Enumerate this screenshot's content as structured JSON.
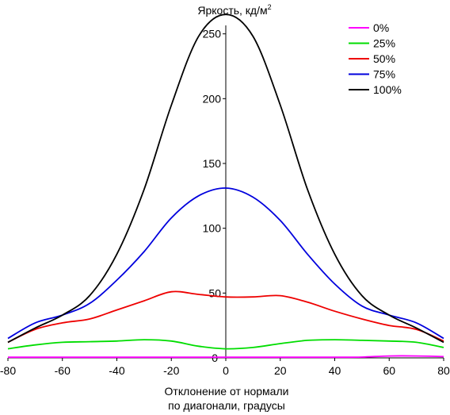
{
  "chart_data": {
    "type": "line",
    "title": "Яркость, кд/м",
    "title_superscript": "2",
    "xlabel_line1": "Отклонение от нормали",
    "xlabel_line2": "по диагонали, градусы",
    "ylabel": "",
    "xlim": [
      -80,
      80
    ],
    "ylim": [
      0,
      270
    ],
    "x_ticks": [
      -80,
      -60,
      -40,
      -20,
      0,
      20,
      40,
      60,
      80
    ],
    "y_ticks": [
      50,
      100,
      150,
      200,
      250
    ],
    "grid": false,
    "legend_position": "top-right",
    "x": [
      -80,
      -70,
      -60,
      -50,
      -40,
      -30,
      -20,
      -10,
      0,
      10,
      20,
      30,
      40,
      50,
      60,
      70,
      80
    ],
    "series": [
      {
        "name": "0%",
        "color": "#ff00ff",
        "values": [
          0.5,
          0.5,
          0.5,
          0.5,
          0.5,
          0.5,
          0.5,
          0.5,
          0.5,
          0.5,
          0.5,
          0.5,
          0.5,
          0.6,
          1.5,
          1.5,
          1
        ]
      },
      {
        "name": "25%",
        "color": "#00dd00",
        "values": [
          7,
          10,
          12,
          12.5,
          13,
          14,
          13,
          9,
          7,
          8,
          11,
          13.5,
          14,
          13.5,
          13,
          12,
          8
        ]
      },
      {
        "name": "50%",
        "color": "#ee0000",
        "values": [
          12,
          22,
          27,
          30,
          37,
          44,
          51,
          49,
          47,
          47,
          48,
          43,
          36,
          30,
          25,
          22,
          13
        ]
      },
      {
        "name": "75%",
        "color": "#0000dd",
        "values": [
          15,
          27,
          33,
          42,
          60,
          82,
          108,
          125,
          131,
          124,
          106,
          80,
          57,
          40,
          33,
          27,
          15
        ]
      },
      {
        "name": "100%",
        "color": "#000000",
        "values": [
          12,
          23,
          33,
          48,
          80,
          130,
          195,
          248,
          265,
          248,
          195,
          130,
          80,
          48,
          33,
          23,
          12
        ]
      }
    ]
  }
}
